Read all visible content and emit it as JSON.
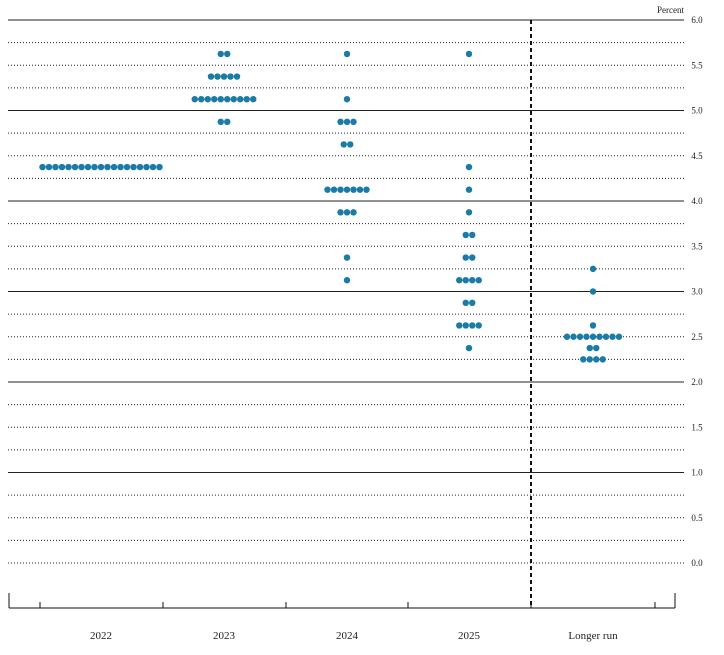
{
  "chart_data": {
    "type": "scatter",
    "ylabel": "Percent",
    "ylim": [
      0,
      6
    ],
    "yticks": [
      "0.0",
      "0.5",
      "1.0",
      "1.5",
      "2.0",
      "2.5",
      "3.0",
      "3.5",
      "4.0",
      "4.5",
      "5.0",
      "5.5",
      "6.0"
    ],
    "categories": [
      "2022",
      "2023",
      "2024",
      "2025",
      "Longer run"
    ],
    "dot_color": "#1a7aa8",
    "columns": [
      {
        "category": "2022",
        "dots": [
          {
            "y": 4.375,
            "count": 19
          }
        ]
      },
      {
        "category": "2023",
        "dots": [
          {
            "y": 5.625,
            "count": 2
          },
          {
            "y": 5.375,
            "count": 5
          },
          {
            "y": 5.125,
            "count": 10
          },
          {
            "y": 4.875,
            "count": 2
          }
        ]
      },
      {
        "category": "2024",
        "dots": [
          {
            "y": 5.625,
            "count": 1
          },
          {
            "y": 5.125,
            "count": 1
          },
          {
            "y": 4.875,
            "count": 3
          },
          {
            "y": 4.625,
            "count": 2
          },
          {
            "y": 4.125,
            "count": 7
          },
          {
            "y": 3.875,
            "count": 3
          },
          {
            "y": 3.375,
            "count": 1
          },
          {
            "y": 3.125,
            "count": 1
          }
        ]
      },
      {
        "category": "2025",
        "dots": [
          {
            "y": 5.625,
            "count": 1
          },
          {
            "y": 4.375,
            "count": 1
          },
          {
            "y": 4.125,
            "count": 1
          },
          {
            "y": 3.875,
            "count": 1
          },
          {
            "y": 3.625,
            "count": 2
          },
          {
            "y": 3.375,
            "count": 2
          },
          {
            "y": 3.125,
            "count": 4
          },
          {
            "y": 2.875,
            "count": 2
          },
          {
            "y": 2.625,
            "count": 4
          },
          {
            "y": 2.375,
            "count": 1
          }
        ]
      },
      {
        "category": "Longer run",
        "dots": [
          {
            "y": 3.25,
            "count": 1
          },
          {
            "y": 3.0,
            "count": 1
          },
          {
            "y": 2.625,
            "count": 1
          },
          {
            "y": 2.5,
            "count": 9
          },
          {
            "y": 2.375,
            "count": 2
          },
          {
            "y": 2.25,
            "count": 4
          }
        ]
      }
    ]
  }
}
